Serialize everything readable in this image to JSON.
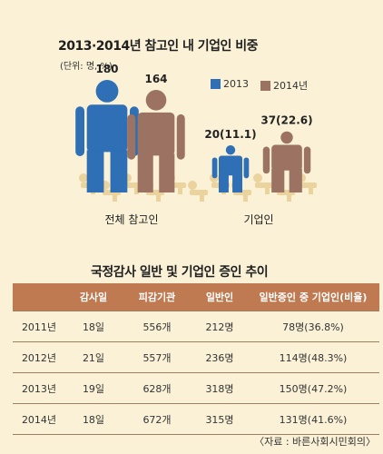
{
  "chart_data": [
    {
      "type": "bar",
      "title": "2013·2014년 참고인 내 기업인 비중",
      "unit": "(단위: 명, %)",
      "categories": [
        "전체 참고인",
        "기업인"
      ],
      "series": [
        {
          "name": "2013",
          "values": [
            180,
            20
          ],
          "labels": [
            "180",
            "20(11.1)"
          ],
          "color": "#2e6fb6"
        },
        {
          "name": "2014년",
          "values": [
            164,
            37
          ],
          "labels": [
            "164",
            "37(22.6)"
          ],
          "color": "#9c7262"
        }
      ],
      "legend_position": "top-right",
      "icon": "person-icon"
    },
    {
      "type": "table",
      "title": "국정감사 일반 및 기업인 증인 추이",
      "columns": [
        "",
        "감사일",
        "피감기관",
        "일반인",
        "일반증인 중 기업인(비율)"
      ],
      "rows": [
        [
          "2011년",
          "18일",
          "556개",
          "212명",
          "78명(36.8%)"
        ],
        [
          "2012년",
          "21일",
          "557개",
          "236명",
          "114명(48.3%)"
        ],
        [
          "2013년",
          "19일",
          "628개",
          "318명",
          "150명(47.2%)"
        ],
        [
          "2014년",
          "18일",
          "672개",
          "315명",
          "131명(41.6%)"
        ]
      ]
    }
  ],
  "source": "〈자료 : 바른사회시민회의〉",
  "colors": {
    "background": "#faf1d6",
    "header": "#c07a52",
    "floor_figures": "#e7c98a"
  }
}
